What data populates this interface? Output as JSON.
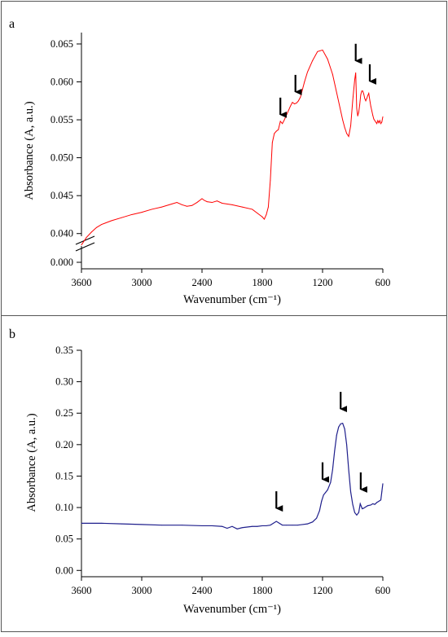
{
  "chart_data": [
    {
      "type": "line",
      "panel_label": "a",
      "xlabel": "Wavenumber (cm⁻¹)",
      "ylabel": "Absorbance (A, a.u.)",
      "xlim": [
        3600,
        600
      ],
      "x_reversed": true,
      "y_axis_break": true,
      "ylim": [
        0.0375,
        0.0665
      ],
      "x_ticks": [
        3600,
        3000,
        2400,
        1800,
        1200,
        600
      ],
      "x_tick_labels": [
        "3600",
        "3000",
        "2400",
        "1800",
        "1200",
        "600"
      ],
      "y_ticks": [
        0.04,
        0.045,
        0.05,
        0.055,
        0.06,
        0.065
      ],
      "y_tick_labels": [
        "0.040",
        "0.045",
        "0.050",
        "0.055",
        "0.060",
        "0.065"
      ],
      "y_break_tick_label": "0.000",
      "grid": false,
      "series": [
        {
          "color": "#ff0000",
          "x": [
            3600,
            3550,
            3500,
            3450,
            3400,
            3300,
            3200,
            3100,
            3000,
            2900,
            2800,
            2700,
            2650,
            2600,
            2550,
            2500,
            2450,
            2400,
            2380,
            2350,
            2300,
            2250,
            2200,
            2100,
            2000,
            1900,
            1850,
            1800,
            1780,
            1760,
            1740,
            1720,
            1700,
            1680,
            1660,
            1640,
            1620,
            1600,
            1580,
            1560,
            1540,
            1520,
            1500,
            1480,
            1460,
            1440,
            1420,
            1400,
            1380,
            1350,
            1300,
            1250,
            1200,
            1150,
            1100,
            1050,
            1000,
            980,
            960,
            940,
            920,
            900,
            880,
            870,
            860,
            850,
            840,
            830,
            820,
            810,
            800,
            790,
            780,
            770,
            760,
            750,
            740,
            730,
            720,
            710,
            700,
            690,
            680,
            670,
            660,
            650,
            640,
            630,
            620,
            610,
            600
          ],
          "y": [
            0.0385,
            0.0395,
            0.0402,
            0.0408,
            0.0412,
            0.0417,
            0.0421,
            0.0425,
            0.0428,
            0.0432,
            0.0435,
            0.0439,
            0.0441,
            0.0438,
            0.0436,
            0.0437,
            0.0441,
            0.0446,
            0.0444,
            0.0442,
            0.0441,
            0.0443,
            0.044,
            0.0438,
            0.0435,
            0.0432,
            0.0427,
            0.0422,
            0.0419,
            0.0425,
            0.0435,
            0.047,
            0.052,
            0.0532,
            0.0535,
            0.0537,
            0.0548,
            0.0545,
            0.055,
            0.0556,
            0.0562,
            0.0568,
            0.0573,
            0.0571,
            0.0572,
            0.0575,
            0.058,
            0.059,
            0.06,
            0.0613,
            0.0628,
            0.064,
            0.0642,
            0.063,
            0.061,
            0.058,
            0.055,
            0.054,
            0.0532,
            0.0528,
            0.0542,
            0.0575,
            0.0603,
            0.0612,
            0.0565,
            0.0555,
            0.056,
            0.057,
            0.0583,
            0.0588,
            0.0588,
            0.0584,
            0.0578,
            0.0575,
            0.0578,
            0.0582,
            0.0585,
            0.0576,
            0.0568,
            0.0562,
            0.0556,
            0.0551,
            0.0549,
            0.0547,
            0.0545,
            0.0549,
            0.0546,
            0.0549,
            0.0545,
            0.0547,
            0.0554
          ]
        }
      ],
      "annotations": [
        {
          "type": "arrow-down",
          "x": 1620,
          "y": 0.0547
        },
        {
          "type": "arrow-down",
          "x": 1470,
          "y": 0.0577
        },
        {
          "type": "arrow-down",
          "x": 870,
          "y": 0.0618
        },
        {
          "type": "arrow-down",
          "x": 730,
          "y": 0.0591
        }
      ]
    },
    {
      "type": "line",
      "panel_label": "b",
      "xlabel": "Wavenumber (cm⁻¹)",
      "ylabel": "Absorbance (A, a.u.)",
      "xlim": [
        3600,
        600
      ],
      "x_reversed": true,
      "ylim": [
        -0.01,
        0.35
      ],
      "x_ticks": [
        3600,
        3000,
        2400,
        1800,
        1200,
        600
      ],
      "x_tick_labels": [
        "3600",
        "3000",
        "2400",
        "1800",
        "1200",
        "600"
      ],
      "y_ticks": [
        0.0,
        0.05,
        0.1,
        0.15,
        0.2,
        0.25,
        0.3,
        0.35
      ],
      "y_tick_labels": [
        "0.00",
        "0.05",
        "0.10",
        "0.15",
        "0.20",
        "0.25",
        "0.30",
        "0.35"
      ],
      "grid": false,
      "series": [
        {
          "color": "#1f1f8c",
          "x": [
            3600,
            3400,
            3200,
            3000,
            2800,
            2600,
            2400,
            2300,
            2200,
            2150,
            2100,
            2050,
            2000,
            1950,
            1900,
            1850,
            1800,
            1760,
            1720,
            1690,
            1660,
            1630,
            1600,
            1560,
            1500,
            1450,
            1400,
            1350,
            1300,
            1260,
            1230,
            1210,
            1190,
            1170,
            1150,
            1120,
            1100,
            1080,
            1060,
            1040,
            1020,
            1000,
            980,
            960,
            940,
            920,
            900,
            880,
            860,
            840,
            825,
            815,
            805,
            790,
            770,
            750,
            720,
            700,
            680,
            660,
            640,
            620,
            610,
            600
          ],
          "y": [
            0.075,
            0.075,
            0.074,
            0.073,
            0.072,
            0.072,
            0.071,
            0.071,
            0.07,
            0.067,
            0.07,
            0.066,
            0.068,
            0.069,
            0.07,
            0.07,
            0.071,
            0.071,
            0.072,
            0.075,
            0.078,
            0.075,
            0.072,
            0.072,
            0.072,
            0.072,
            0.073,
            0.074,
            0.077,
            0.083,
            0.095,
            0.11,
            0.12,
            0.124,
            0.128,
            0.14,
            0.16,
            0.19,
            0.215,
            0.228,
            0.233,
            0.234,
            0.225,
            0.2,
            0.16,
            0.125,
            0.105,
            0.092,
            0.088,
            0.092,
            0.106,
            0.102,
            0.098,
            0.099,
            0.101,
            0.103,
            0.104,
            0.106,
            0.105,
            0.108,
            0.11,
            0.112,
            0.125,
            0.138
          ]
        }
      ],
      "annotations": [
        {
          "type": "arrow-down",
          "x": 1660,
          "y": 0.087
        },
        {
          "type": "arrow-down",
          "x": 1200,
          "y": 0.133
        },
        {
          "type": "arrow-down",
          "x": 1020,
          "y": 0.245
        },
        {
          "type": "arrow-down",
          "x": 820,
          "y": 0.117
        }
      ]
    }
  ]
}
